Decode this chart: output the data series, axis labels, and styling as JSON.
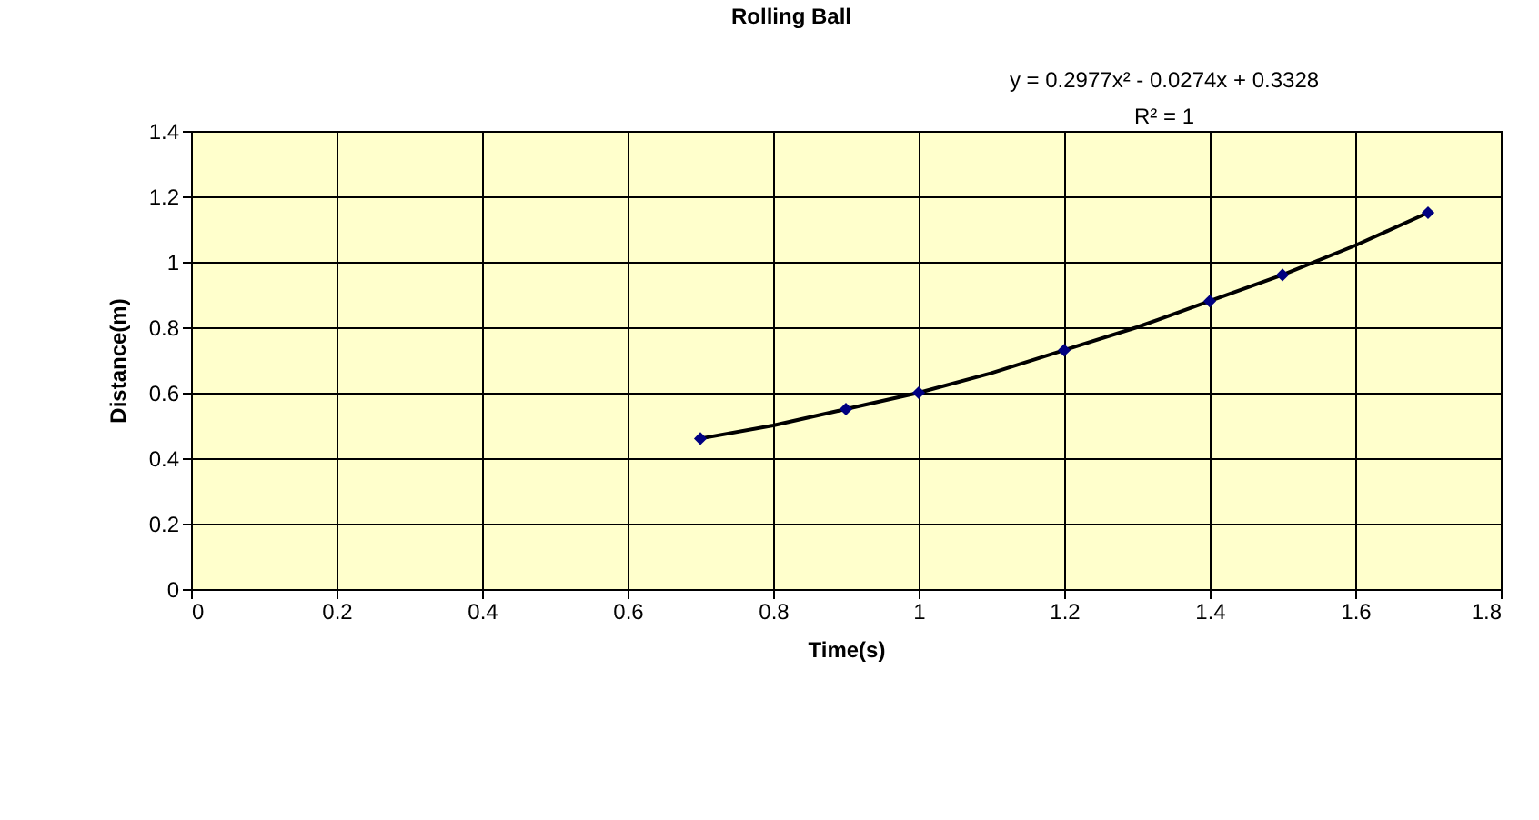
{
  "chart_data": {
    "type": "scatter",
    "title": "Rolling Ball",
    "xlabel": "Time(s)",
    "ylabel": "Distance(m)",
    "annotations": [
      "y = 0.2977x² - 0.0274x + 0.3328",
      "R² = 1"
    ],
    "series": [
      {
        "type": "scatter",
        "color": "#000080",
        "marker": "diamond",
        "x": [
          0.7,
          0.9,
          1.0,
          1.2,
          1.4,
          1.5,
          1.7
        ],
        "values": [
          0.46,
          0.55,
          0.6,
          0.73,
          0.88,
          0.96,
          1.15
        ]
      },
      {
        "type": "line",
        "color": "#000000",
        "marker": "none",
        "line_style": "solid",
        "x": [
          0.7,
          0.8,
          0.9,
          1.0,
          1.1,
          1.2,
          1.3,
          1.4,
          1.5,
          1.6,
          1.7
        ],
        "values": [
          0.46,
          0.5,
          0.55,
          0.6,
          0.66,
          0.73,
          0.8,
          0.88,
          0.96,
          1.05,
          1.15
        ]
      }
    ],
    "xlim": [
      0,
      1.8
    ],
    "xticks": [
      0,
      0.2,
      0.4,
      0.6,
      0.8,
      1,
      1.2,
      1.4,
      1.6,
      1.8
    ],
    "ylim": [
      0,
      1.4
    ],
    "yticks": [
      0,
      0.2,
      0.4,
      0.6,
      0.8,
      1,
      1.2,
      1.4
    ],
    "grid": true
  }
}
